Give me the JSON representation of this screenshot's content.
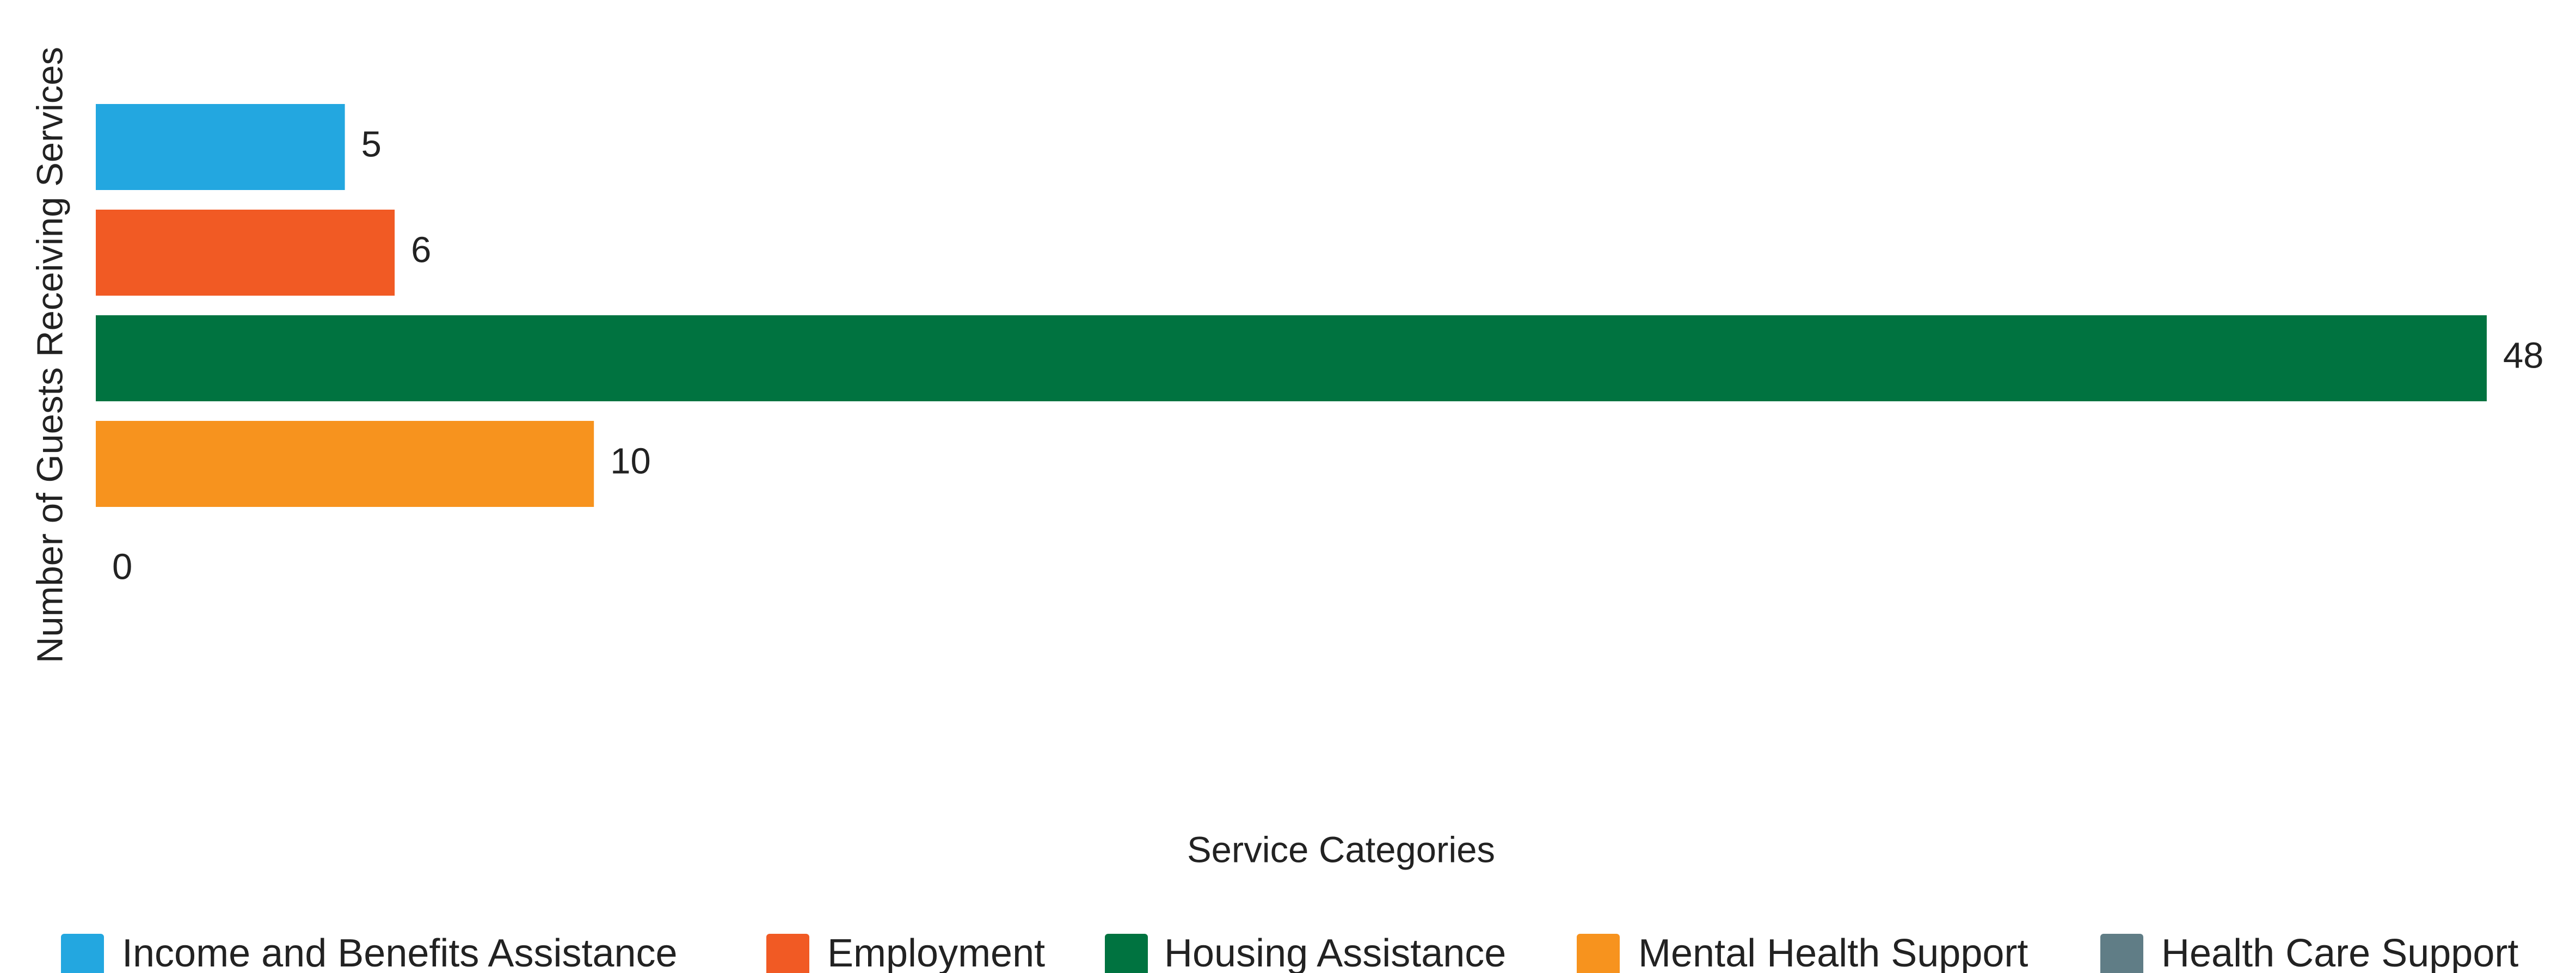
{
  "chart_data": {
    "type": "barh",
    "x_label": "Service Categories",
    "y_label": "Number of Guests Receiving Services",
    "series": [
      {
        "name": "Income and Benefits Assistance",
        "color": "#23a7e0",
        "values": [
          5
        ]
      },
      {
        "name": "Employment",
        "color": "#f15a24",
        "values": [
          6
        ]
      },
      {
        "name": "Housing Assistance",
        "color": "#007340",
        "values": [
          48
        ]
      },
      {
        "name": "Mental Health Support",
        "color": "#f7931e",
        "values": [
          10
        ]
      },
      {
        "name": "Health Care Support",
        "color": "#607d86",
        "values": [
          0
        ]
      }
    ]
  }
}
